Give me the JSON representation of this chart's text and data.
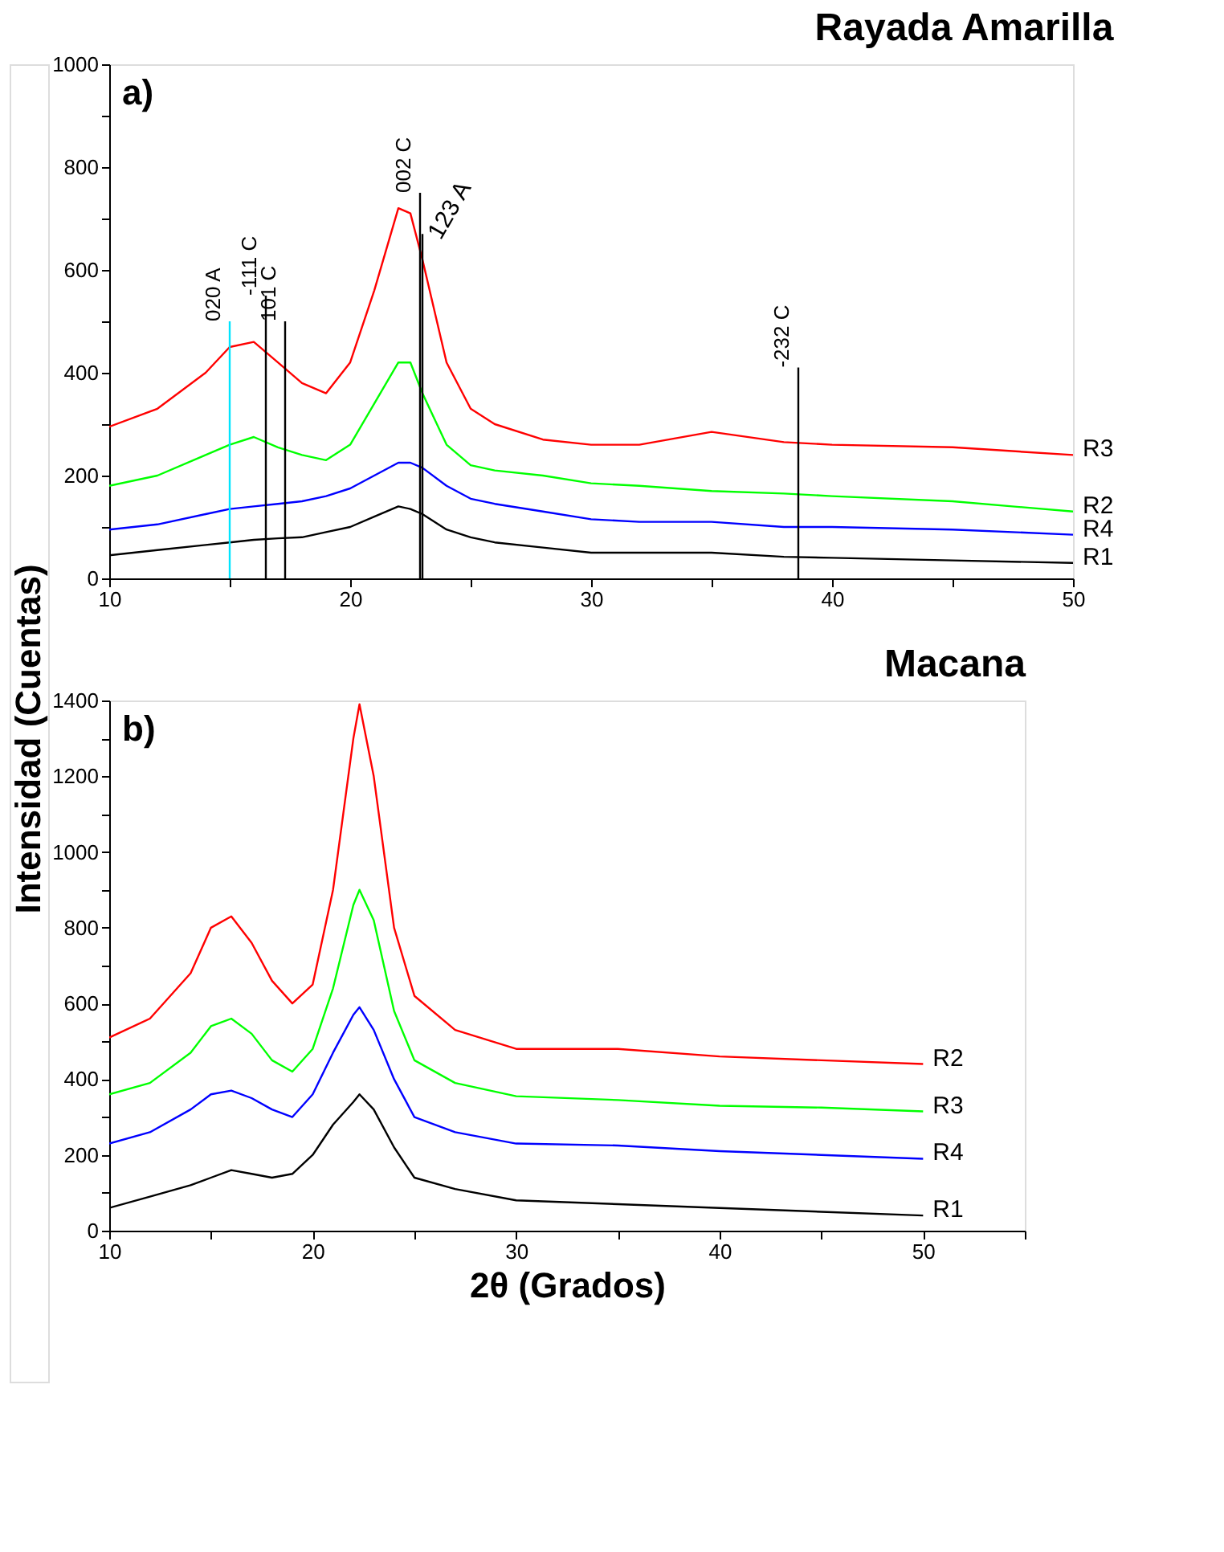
{
  "chart_data": [
    {
      "type": "line",
      "title": "Rayada Amarilla",
      "ylabel": "Intensidad (Cuentas)",
      "x": [
        10,
        12,
        14,
        15,
        16,
        17,
        18,
        19,
        20,
        21,
        22,
        22.5,
        23,
        24,
        25,
        26,
        28,
        30,
        32,
        35,
        38,
        40,
        45,
        50
      ],
      "series": [
        {
          "name": "R3",
          "color": "#ff0000",
          "values": [
            295,
            330,
            400,
            450,
            460,
            420,
            380,
            360,
            420,
            560,
            720,
            710,
            620,
            420,
            330,
            300,
            270,
            260,
            260,
            285,
            265,
            260,
            255,
            240
          ]
        },
        {
          "name": "R2",
          "color": "#00ff00",
          "values": [
            180,
            200,
            240,
            260,
            275,
            255,
            240,
            230,
            260,
            340,
            420,
            420,
            360,
            260,
            220,
            210,
            200,
            185,
            180,
            170,
            165,
            160,
            150,
            130
          ]
        },
        {
          "name": "R4",
          "color": "#0000ff",
          "values": [
            95,
            105,
            125,
            135,
            140,
            145,
            150,
            160,
            175,
            200,
            225,
            225,
            215,
            180,
            155,
            145,
            130,
            115,
            110,
            110,
            100,
            100,
            95,
            85
          ]
        },
        {
          "name": "R1",
          "color": "#000000",
          "values": [
            45,
            55,
            65,
            70,
            75,
            78,
            80,
            90,
            100,
            120,
            140,
            135,
            125,
            95,
            80,
            70,
            60,
            50,
            50,
            50,
            42,
            40,
            35,
            30
          ]
        },
        {
          "type": "line",
          "color": "#00e5ff",
          "x": [
            15,
            15
          ],
          "values": [
            0,
            500
          ]
        },
        {
          "type": "line",
          "color": "#000000",
          "x": [
            16.5,
            16.5
          ],
          "values": [
            0,
            550
          ]
        },
        {
          "type": "line",
          "color": "#000000",
          "x": [
            17.3,
            17.3
          ],
          "values": [
            0,
            500
          ]
        },
        {
          "type": "line",
          "color": "#000000",
          "x": [
            22.9,
            22.9
          ],
          "values": [
            0,
            750
          ]
        },
        {
          "type": "line",
          "color": "#000000",
          "x": [
            23,
            23
          ],
          "values": [
            0,
            670
          ]
        },
        {
          "type": "line",
          "color": "#000000",
          "x": [
            38.6,
            38.6
          ],
          "values": [
            0,
            410
          ]
        }
      ],
      "annotations": [
        "a)",
        {
          "text": "020 A",
          "x": 15,
          "y": 500
        },
        {
          "text": "-111 C",
          "x": 16.5,
          "y": 550
        },
        {
          "text": "101 C",
          "x": 17.3,
          "y": 500
        },
        {
          "text": "002 C",
          "x": 22.9,
          "y": 750
        },
        {
          "text": "123 A",
          "x": 23,
          "y": 670
        },
        {
          "text": "-232 C",
          "x": 38.6,
          "y": 410
        }
      ],
      "xlim": [
        10,
        50
      ],
      "xticks": [
        10,
        {
          "value": 15,
          "label": null
        },
        20,
        {
          "value": 25,
          "label": null
        },
        30,
        {
          "value": 35,
          "label": null
        },
        40,
        {
          "value": 45,
          "label": null
        },
        50
      ],
      "ylim": [
        0,
        1000
      ],
      "yticks": [
        0,
        {
          "value": 100,
          "label": null
        },
        200,
        {
          "value": 300,
          "label": null
        },
        400,
        {
          "value": 500,
          "label": null
        },
        600,
        {
          "value": 700,
          "label": null
        },
        800,
        {
          "value": 900,
          "label": null
        },
        1000
      ]
    },
    {
      "type": "line",
      "title": "Macana",
      "xlabel": "2θ (Grados)",
      "x": [
        10,
        12,
        14,
        15,
        16,
        17,
        18,
        19,
        20,
        21,
        22,
        22.3,
        23,
        24,
        25,
        27,
        30,
        35,
        40,
        45,
        50
      ],
      "series": [
        {
          "name": "R2",
          "color": "#ff0000",
          "values": [
            510,
            560,
            680,
            800,
            830,
            760,
            660,
            600,
            650,
            900,
            1300,
            1390,
            1200,
            800,
            620,
            530,
            480,
            480,
            460,
            450,
            440
          ]
        },
        {
          "name": "R3",
          "color": "#00ff00",
          "values": [
            360,
            390,
            470,
            540,
            560,
            520,
            450,
            420,
            480,
            640,
            860,
            900,
            820,
            580,
            450,
            390,
            355,
            345,
            330,
            325,
            315
          ]
        },
        {
          "name": "R4",
          "color": "#0000ff",
          "values": [
            230,
            260,
            320,
            360,
            370,
            350,
            320,
            300,
            360,
            470,
            570,
            590,
            530,
            400,
            300,
            260,
            230,
            225,
            210,
            200,
            190
          ]
        },
        {
          "name": "R1",
          "color": "#000000",
          "values": [
            60,
            90,
            120,
            140,
            160,
            150,
            140,
            150,
            200,
            280,
            340,
            360,
            320,
            220,
            140,
            110,
            80,
            70,
            60,
            50,
            40
          ]
        }
      ],
      "annotations": [
        "b)"
      ],
      "xlim": [
        10,
        55
      ],
      "xticks": [
        10,
        {
          "value": 15,
          "label": null
        },
        20,
        {
          "value": 25,
          "label": null
        },
        30,
        {
          "value": 35,
          "label": null
        },
        40,
        {
          "value": 45,
          "label": null
        },
        50,
        {
          "value": 55,
          "label": null
        }
      ],
      "ylim": [
        0,
        1400
      ],
      "yticks": [
        0,
        {
          "value": 100,
          "label": null
        },
        200,
        {
          "value": 300,
          "label": null
        },
        400,
        {
          "value": 500,
          "label": null
        },
        600,
        {
          "value": 700,
          "label": null
        },
        800,
        {
          "value": 900,
          "label": null
        },
        1000,
        {
          "value": 1100,
          "label": null
        },
        1200,
        {
          "value": 1300,
          "label": null
        },
        1400
      ]
    }
  ]
}
